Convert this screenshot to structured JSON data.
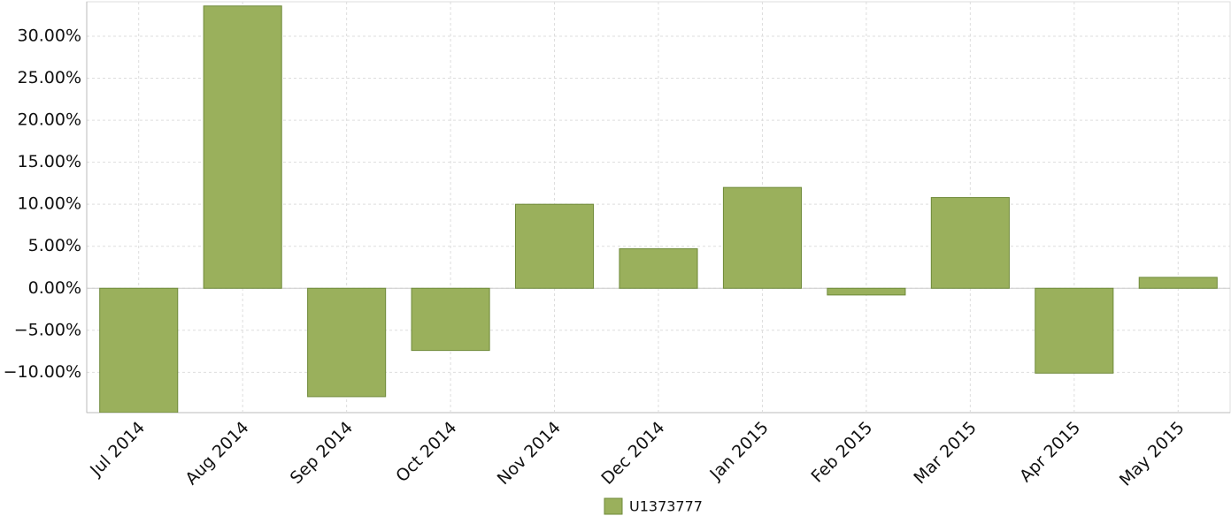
{
  "chart_data": {
    "type": "bar",
    "categories": [
      "Jul 2014",
      "Aug 2014",
      "Sep 2014",
      "Oct 2014",
      "Nov 2014",
      "Dec 2014",
      "Jan 2015",
      "Feb 2015",
      "Mar 2015",
      "Apr 2015",
      "May 2015"
    ],
    "series": [
      {
        "name": "U1373777",
        "color": "#9ab05c",
        "values": [
          -14.8,
          33.6,
          -12.9,
          -7.4,
          10.0,
          4.7,
          12.0,
          -0.8,
          10.8,
          -10.1,
          1.3
        ]
      }
    ],
    "ylim": [
      -14.8,
      34.1
    ],
    "yticks": [
      {
        "value": -10,
        "label": "−10.00%"
      },
      {
        "value": -5,
        "label": "−5.00%"
      },
      {
        "value": 0,
        "label": "0.00%"
      },
      {
        "value": 5,
        "label": "5.00%"
      },
      {
        "value": 10,
        "label": "10.00%"
      },
      {
        "value": 15,
        "label": "15.00%"
      },
      {
        "value": 20,
        "label": "20.00%"
      },
      {
        "value": 25,
        "label": "25.00%"
      },
      {
        "value": 30,
        "label": "30.00%"
      }
    ],
    "grid": true,
    "legend": "bottom"
  }
}
